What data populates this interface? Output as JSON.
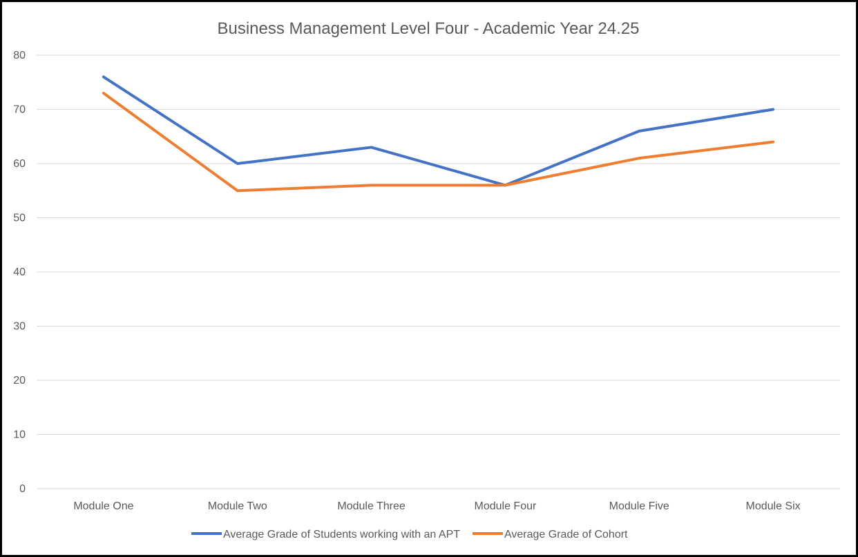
{
  "chart_data": {
    "type": "line",
    "title": "Business Management Level Four - Academic Year 24.25",
    "xlabel": "",
    "ylabel": "",
    "categories": [
      "Module One",
      "Module Two",
      "Module Three",
      "Module Four",
      "Module Five",
      "Module Six"
    ],
    "yticks": [
      "0",
      "10",
      "20",
      "30",
      "40",
      "50",
      "60",
      "70",
      "80"
    ],
    "ylim": [
      0,
      80
    ],
    "grid": "horizontal",
    "legend_position": "bottom",
    "series": [
      {
        "name": "Average Grade of Students working with an APT",
        "color": "#4472c4",
        "values": [
          76,
          60,
          63,
          56,
          66,
          70
        ]
      },
      {
        "name": "Average Grade of Cohort",
        "color": "#ed7d31",
        "values": [
          73,
          55,
          56,
          56,
          61,
          64
        ]
      }
    ]
  }
}
